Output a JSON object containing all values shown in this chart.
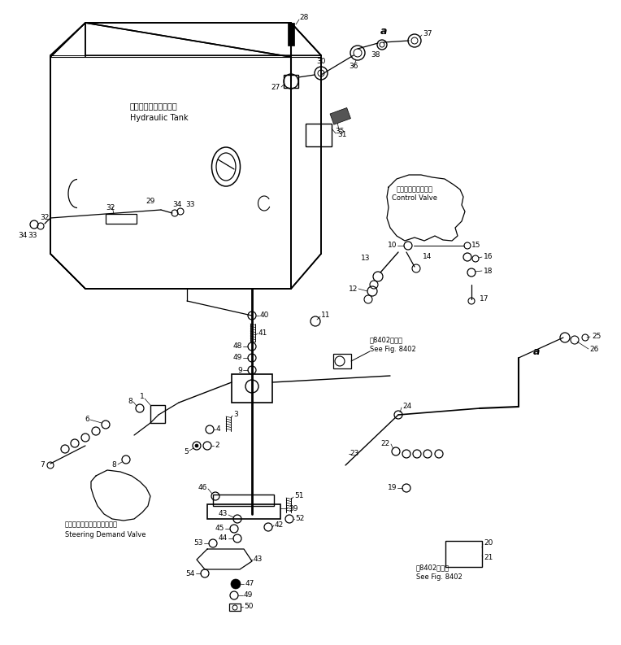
{
  "background_color": "#ffffff",
  "figsize": [
    7.64,
    7.93
  ],
  "dpi": 100,
  "hydraulic_tank_jp": "ハイドロリックタンク",
  "hydraulic_tank_en": "Hydraulic Tank",
  "control_valve_jp": "コントロールバルブ",
  "control_valve_en": "Control Valve",
  "steering_demand_jp": "ステアリングデマンドバルブ",
  "steering_demand_en": "Steering Demand Valve",
  "see_fig_jp": "第8402図参照",
  "see_fig_en": "See Fig. 8402"
}
